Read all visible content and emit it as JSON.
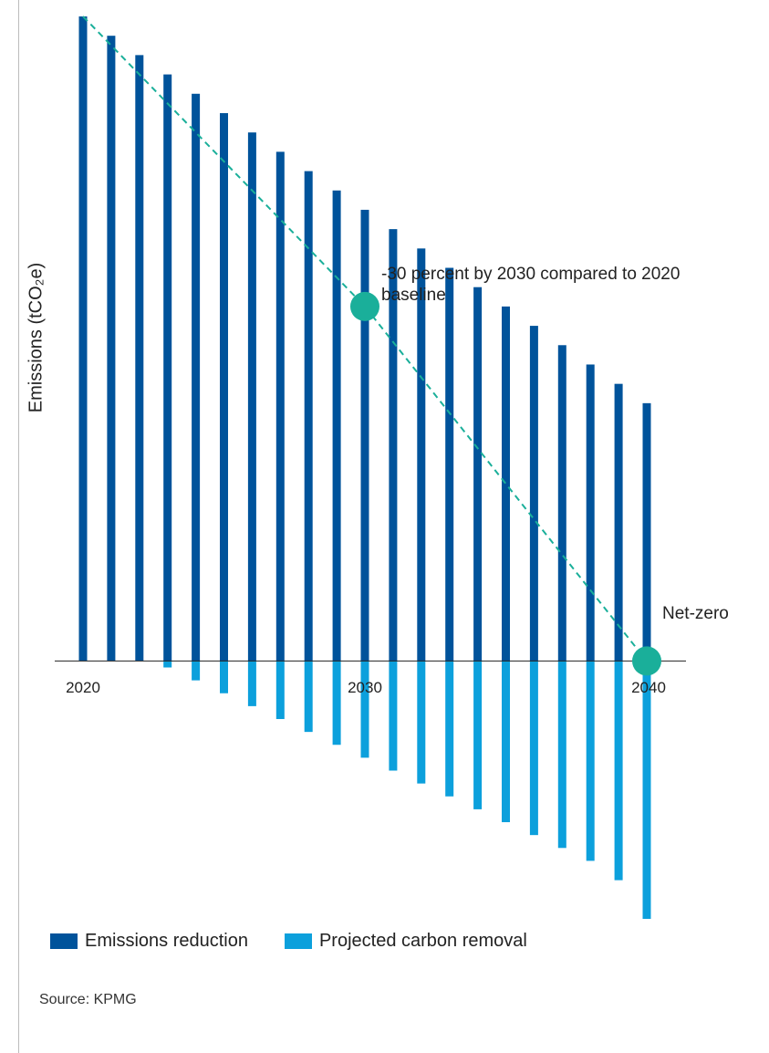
{
  "chart_data": {
    "type": "bar",
    "y_label": "Emissions (tCO₂e)",
    "categories": [
      "2020",
      null,
      null,
      null,
      null,
      null,
      null,
      null,
      null,
      null,
      "2030",
      null,
      null,
      null,
      null,
      null,
      null,
      null,
      null,
      null,
      "2040"
    ],
    "series": [
      {
        "name": "Emissions reduction",
        "color": "#00539b",
        "values": [
          100,
          97,
          94,
          91,
          88,
          85,
          82,
          79,
          76,
          73,
          70,
          67,
          64,
          61,
          58,
          55,
          52,
          49,
          46,
          43,
          40
        ]
      },
      {
        "name": "Projected carbon removal",
        "color": "#0ca0dc",
        "values": [
          0,
          0,
          0,
          -1,
          -3,
          -5,
          -7,
          -9,
          -11,
          -13,
          -15,
          -17,
          -19,
          -21,
          -23,
          -25,
          -27,
          -29,
          -31,
          -34,
          -40
        ]
      },
      {
        "type": "line",
        "dashed": true,
        "color": "#1aaf9a",
        "values": [
          100,
          95.5,
          91,
          86.5,
          82,
          77.5,
          73,
          68.5,
          64,
          59.5,
          55,
          49.5,
          44,
          38.5,
          33,
          27.5,
          22,
          16.5,
          11,
          5.5,
          0
        ]
      }
    ],
    "annotations": [
      {
        "text": "-30 percent by 2030 compared to 2020 baseline",
        "category": "2030"
      },
      {
        "text": "Net-zero",
        "category": "2040"
      }
    ],
    "ylim": [
      -40,
      100
    ],
    "source": "Source: KPMG"
  }
}
